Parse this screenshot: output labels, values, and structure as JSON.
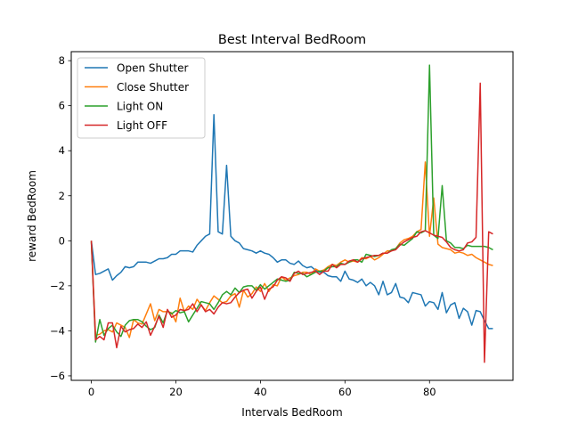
{
  "chart_data": {
    "type": "line",
    "title": "Best Interval BedRoom",
    "xlabel": "Intervals BedRoom",
    "ylabel": "reward BedRoom",
    "xlim": [
      -4.75,
      99.75
    ],
    "ylim": [
      -6.2,
      8.4
    ],
    "xticks": [
      0,
      20,
      40,
      60,
      80
    ],
    "yticks": [
      -6,
      -4,
      -2,
      0,
      2,
      4,
      6,
      8
    ],
    "ytick_labels": [
      "−6",
      "−4",
      "−2",
      "0",
      "2",
      "4",
      "6",
      "8"
    ],
    "grid": false,
    "legend_position": "upper-left",
    "x": [
      0,
      1,
      2,
      3,
      4,
      5,
      6,
      7,
      8,
      9,
      10,
      11,
      12,
      13,
      14,
      15,
      16,
      17,
      18,
      19,
      20,
      21,
      22,
      23,
      24,
      25,
      26,
      27,
      28,
      29,
      30,
      31,
      32,
      33,
      34,
      35,
      36,
      37,
      38,
      39,
      40,
      41,
      42,
      43,
      44,
      45,
      46,
      47,
      48,
      49,
      50,
      51,
      52,
      53,
      54,
      55,
      56,
      57,
      58,
      59,
      60,
      61,
      62,
      63,
      64,
      65,
      66,
      67,
      68,
      69,
      70,
      71,
      72,
      73,
      74,
      75,
      76,
      77,
      78,
      79,
      80,
      81,
      82,
      83,
      84,
      85,
      86,
      87,
      88,
      89,
      90,
      91,
      92,
      93,
      94,
      95
    ],
    "series": [
      {
        "name": "Open Shutter",
        "color": "#1f77b4",
        "values": [
          0.0,
          -1.5,
          -1.45,
          -1.35,
          -1.25,
          -1.75,
          -1.55,
          -1.4,
          -1.15,
          -1.2,
          -1.15,
          -0.95,
          -0.95,
          -0.95,
          -1.0,
          -0.9,
          -0.8,
          -0.8,
          -0.75,
          -0.6,
          -0.6,
          -0.45,
          -0.45,
          -0.45,
          -0.5,
          -0.2,
          0.0,
          0.2,
          0.3,
          5.6,
          0.4,
          0.3,
          3.35,
          0.2,
          0.0,
          -0.1,
          -0.35,
          -0.4,
          -0.45,
          -0.55,
          -0.45,
          -0.55,
          -0.6,
          -0.75,
          -0.95,
          -0.85,
          -0.85,
          -1.0,
          -1.05,
          -0.9,
          -1.1,
          -1.2,
          -1.15,
          -1.3,
          -1.4,
          -1.4,
          -1.55,
          -1.6,
          -1.6,
          -1.8,
          -1.35,
          -1.7,
          -1.75,
          -1.85,
          -1.7,
          -2.0,
          -1.85,
          -2.0,
          -2.4,
          -1.8,
          -2.4,
          -2.3,
          -1.9,
          -2.5,
          -2.55,
          -2.75,
          -2.3,
          -2.35,
          -2.4,
          -2.9,
          -2.7,
          -2.75,
          -3.05,
          -2.3,
          -3.2,
          -2.85,
          -2.75,
          -3.45,
          -3.0,
          -3.15,
          -3.75,
          -3.1,
          -3.15,
          -3.55,
          -3.9,
          -3.9
        ]
      },
      {
        "name": "Close Shutter",
        "color": "#ff7f0e",
        "values": [
          0.0,
          -4.2,
          -4.15,
          -4.0,
          -3.95,
          -4.05,
          -3.65,
          -3.75,
          -3.85,
          -4.3,
          -3.5,
          -3.65,
          -3.7,
          -3.25,
          -2.8,
          -3.55,
          -3.05,
          -3.15,
          -3.15,
          -3.2,
          -3.6,
          -2.55,
          -3.15,
          -2.9,
          -3.05,
          -2.6,
          -2.85,
          -3.1,
          -2.75,
          -2.45,
          -2.6,
          -2.75,
          -2.7,
          -2.45,
          -2.35,
          -2.95,
          -2.2,
          -2.5,
          -2.35,
          -2.05,
          -2.25,
          -1.9,
          -2.25,
          -1.95,
          -2.0,
          -1.6,
          -1.75,
          -1.65,
          -1.55,
          -1.5,
          -1.4,
          -1.4,
          -1.5,
          -1.25,
          -1.35,
          -1.3,
          -1.15,
          -1.05,
          -1.1,
          -0.95,
          -0.85,
          -0.95,
          -0.9,
          -0.95,
          -0.75,
          -0.8,
          -0.7,
          -0.85,
          -0.75,
          -0.6,
          -0.45,
          -0.45,
          -0.35,
          -0.1,
          0.05,
          0.1,
          0.2,
          0.4,
          0.5,
          3.5,
          0.2,
          1.9,
          -0.15,
          -0.3,
          -0.35,
          -0.4,
          -0.55,
          -0.5,
          -0.55,
          -0.65,
          -0.6,
          -0.75,
          -0.85,
          -0.95,
          -1.05,
          -1.1
        ]
      },
      {
        "name": "Light ON",
        "color": "#2ca02c",
        "values": [
          -0.05,
          -4.5,
          -3.5,
          -4.2,
          -3.9,
          -3.75,
          -4.05,
          -4.25,
          -3.75,
          -3.55,
          -3.5,
          -3.5,
          -3.6,
          -3.8,
          -3.95,
          -3.85,
          -3.3,
          -3.65,
          -3.1,
          -3.25,
          -3.1,
          -3.2,
          -3.15,
          -3.6,
          -3.3,
          -3.0,
          -2.7,
          -2.75,
          -2.8,
          -3.05,
          -2.75,
          -2.4,
          -2.25,
          -2.4,
          -2.1,
          -2.3,
          -2.05,
          -2.0,
          -2.0,
          -2.2,
          -1.95,
          -2.15,
          -2.0,
          -1.85,
          -1.7,
          -1.75,
          -1.8,
          -1.75,
          -1.4,
          -1.45,
          -1.45,
          -1.6,
          -1.5,
          -1.4,
          -1.35,
          -1.35,
          -1.2,
          -1.15,
          -1.15,
          -1.0,
          -1.05,
          -0.95,
          -0.85,
          -0.85,
          -0.95,
          -0.6,
          -0.65,
          -0.7,
          -0.65,
          -0.55,
          -0.55,
          -0.4,
          -0.35,
          -0.15,
          -0.2,
          -0.05,
          0.1,
          0.4,
          0.35,
          0.45,
          7.8,
          0.25,
          0.1,
          2.45,
          0.0,
          -0.1,
          -0.3,
          -0.3,
          -0.35,
          -0.2,
          -0.25,
          -0.25,
          -0.25,
          -0.25,
          -0.3,
          -0.4
        ]
      },
      {
        "name": "Light OFF",
        "color": "#d62728",
        "values": [
          0.0,
          -4.4,
          -4.25,
          -4.4,
          -3.65,
          -3.65,
          -4.75,
          -3.8,
          -4.05,
          -3.95,
          -3.9,
          -3.7,
          -3.85,
          -3.6,
          -4.2,
          -3.8,
          -3.35,
          -3.85,
          -3.05,
          -3.4,
          -3.3,
          -3.05,
          -3.1,
          -3.05,
          -2.8,
          -3.15,
          -2.85,
          -3.15,
          -3.05,
          -3.25,
          -2.95,
          -2.75,
          -2.8,
          -2.75,
          -2.5,
          -2.3,
          -2.2,
          -2.15,
          -2.55,
          -2.25,
          -2.05,
          -2.6,
          -2.15,
          -2.05,
          -1.75,
          -1.6,
          -1.65,
          -1.8,
          -1.45,
          -1.35,
          -1.5,
          -1.45,
          -1.4,
          -1.35,
          -1.5,
          -1.35,
          -1.35,
          -1.05,
          -1.2,
          -1.05,
          -1.05,
          -0.9,
          -0.85,
          -0.95,
          -0.8,
          -0.75,
          -0.7,
          -0.65,
          -0.65,
          -0.55,
          -0.55,
          -0.45,
          -0.4,
          -0.2,
          -0.05,
          0.05,
          0.15,
          0.2,
          0.4,
          0.45,
          0.35,
          0.25,
          0.2,
          0.15,
          -0.05,
          -0.3,
          -0.4,
          -0.45,
          -0.4,
          -0.1,
          -0.05,
          0.15,
          7.0,
          -5.4,
          0.4,
          0.3
        ]
      }
    ]
  }
}
